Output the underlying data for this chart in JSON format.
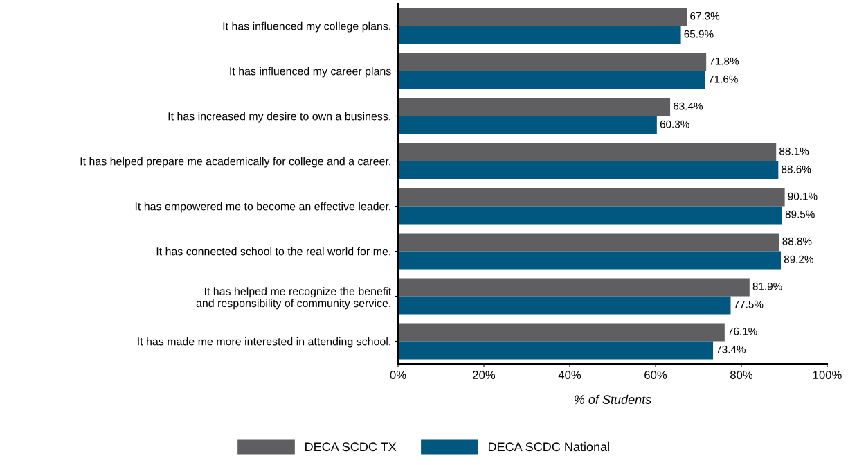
{
  "chart_data": {
    "type": "bar",
    "orientation": "horizontal",
    "xlabel": "% of Students",
    "categories": [
      "It has influenced my college plans.",
      "It has influenced my career plans",
      "It has increased my desire to own a business.",
      "It has helped prepare me academically for college and a career.",
      "It has empowered me to become an effective leader.",
      "It has connected school to the real world for me.",
      "It has helped me recognize the benefit\nand responsibility of community service.",
      "It has made me more interested in attending school."
    ],
    "series": [
      {
        "name": "DECA SCDC TX",
        "color": "#5f5f61",
        "values": [
          67.3,
          71.8,
          63.4,
          88.1,
          90.1,
          88.8,
          81.9,
          76.1
        ],
        "value_labels": [
          "67.3%",
          "71.8%",
          "63.4%",
          "88.1%",
          "90.1%",
          "88.8%",
          "81.9%",
          "76.1%"
        ]
      },
      {
        "name": "DECA SCDC National",
        "color": "#00577f",
        "values": [
          65.9,
          71.6,
          60.3,
          88.6,
          89.5,
          89.2,
          77.5,
          73.4
        ],
        "value_labels": [
          "65.9%",
          "71.6%",
          "60.3%",
          "88.6%",
          "89.5%",
          "89.2%",
          "77.5%",
          "73.4%"
        ]
      }
    ],
    "xlim": [
      0,
      100
    ],
    "xticks": [
      {
        "value": 0,
        "label": "0%"
      },
      {
        "value": 20,
        "label": "20%"
      },
      {
        "value": 40,
        "label": "40%"
      },
      {
        "value": 60,
        "label": "60%"
      },
      {
        "value": 80,
        "label": "80%"
      },
      {
        "value": 100,
        "label": "100%"
      }
    ],
    "grid": false,
    "legend": "bottom"
  }
}
